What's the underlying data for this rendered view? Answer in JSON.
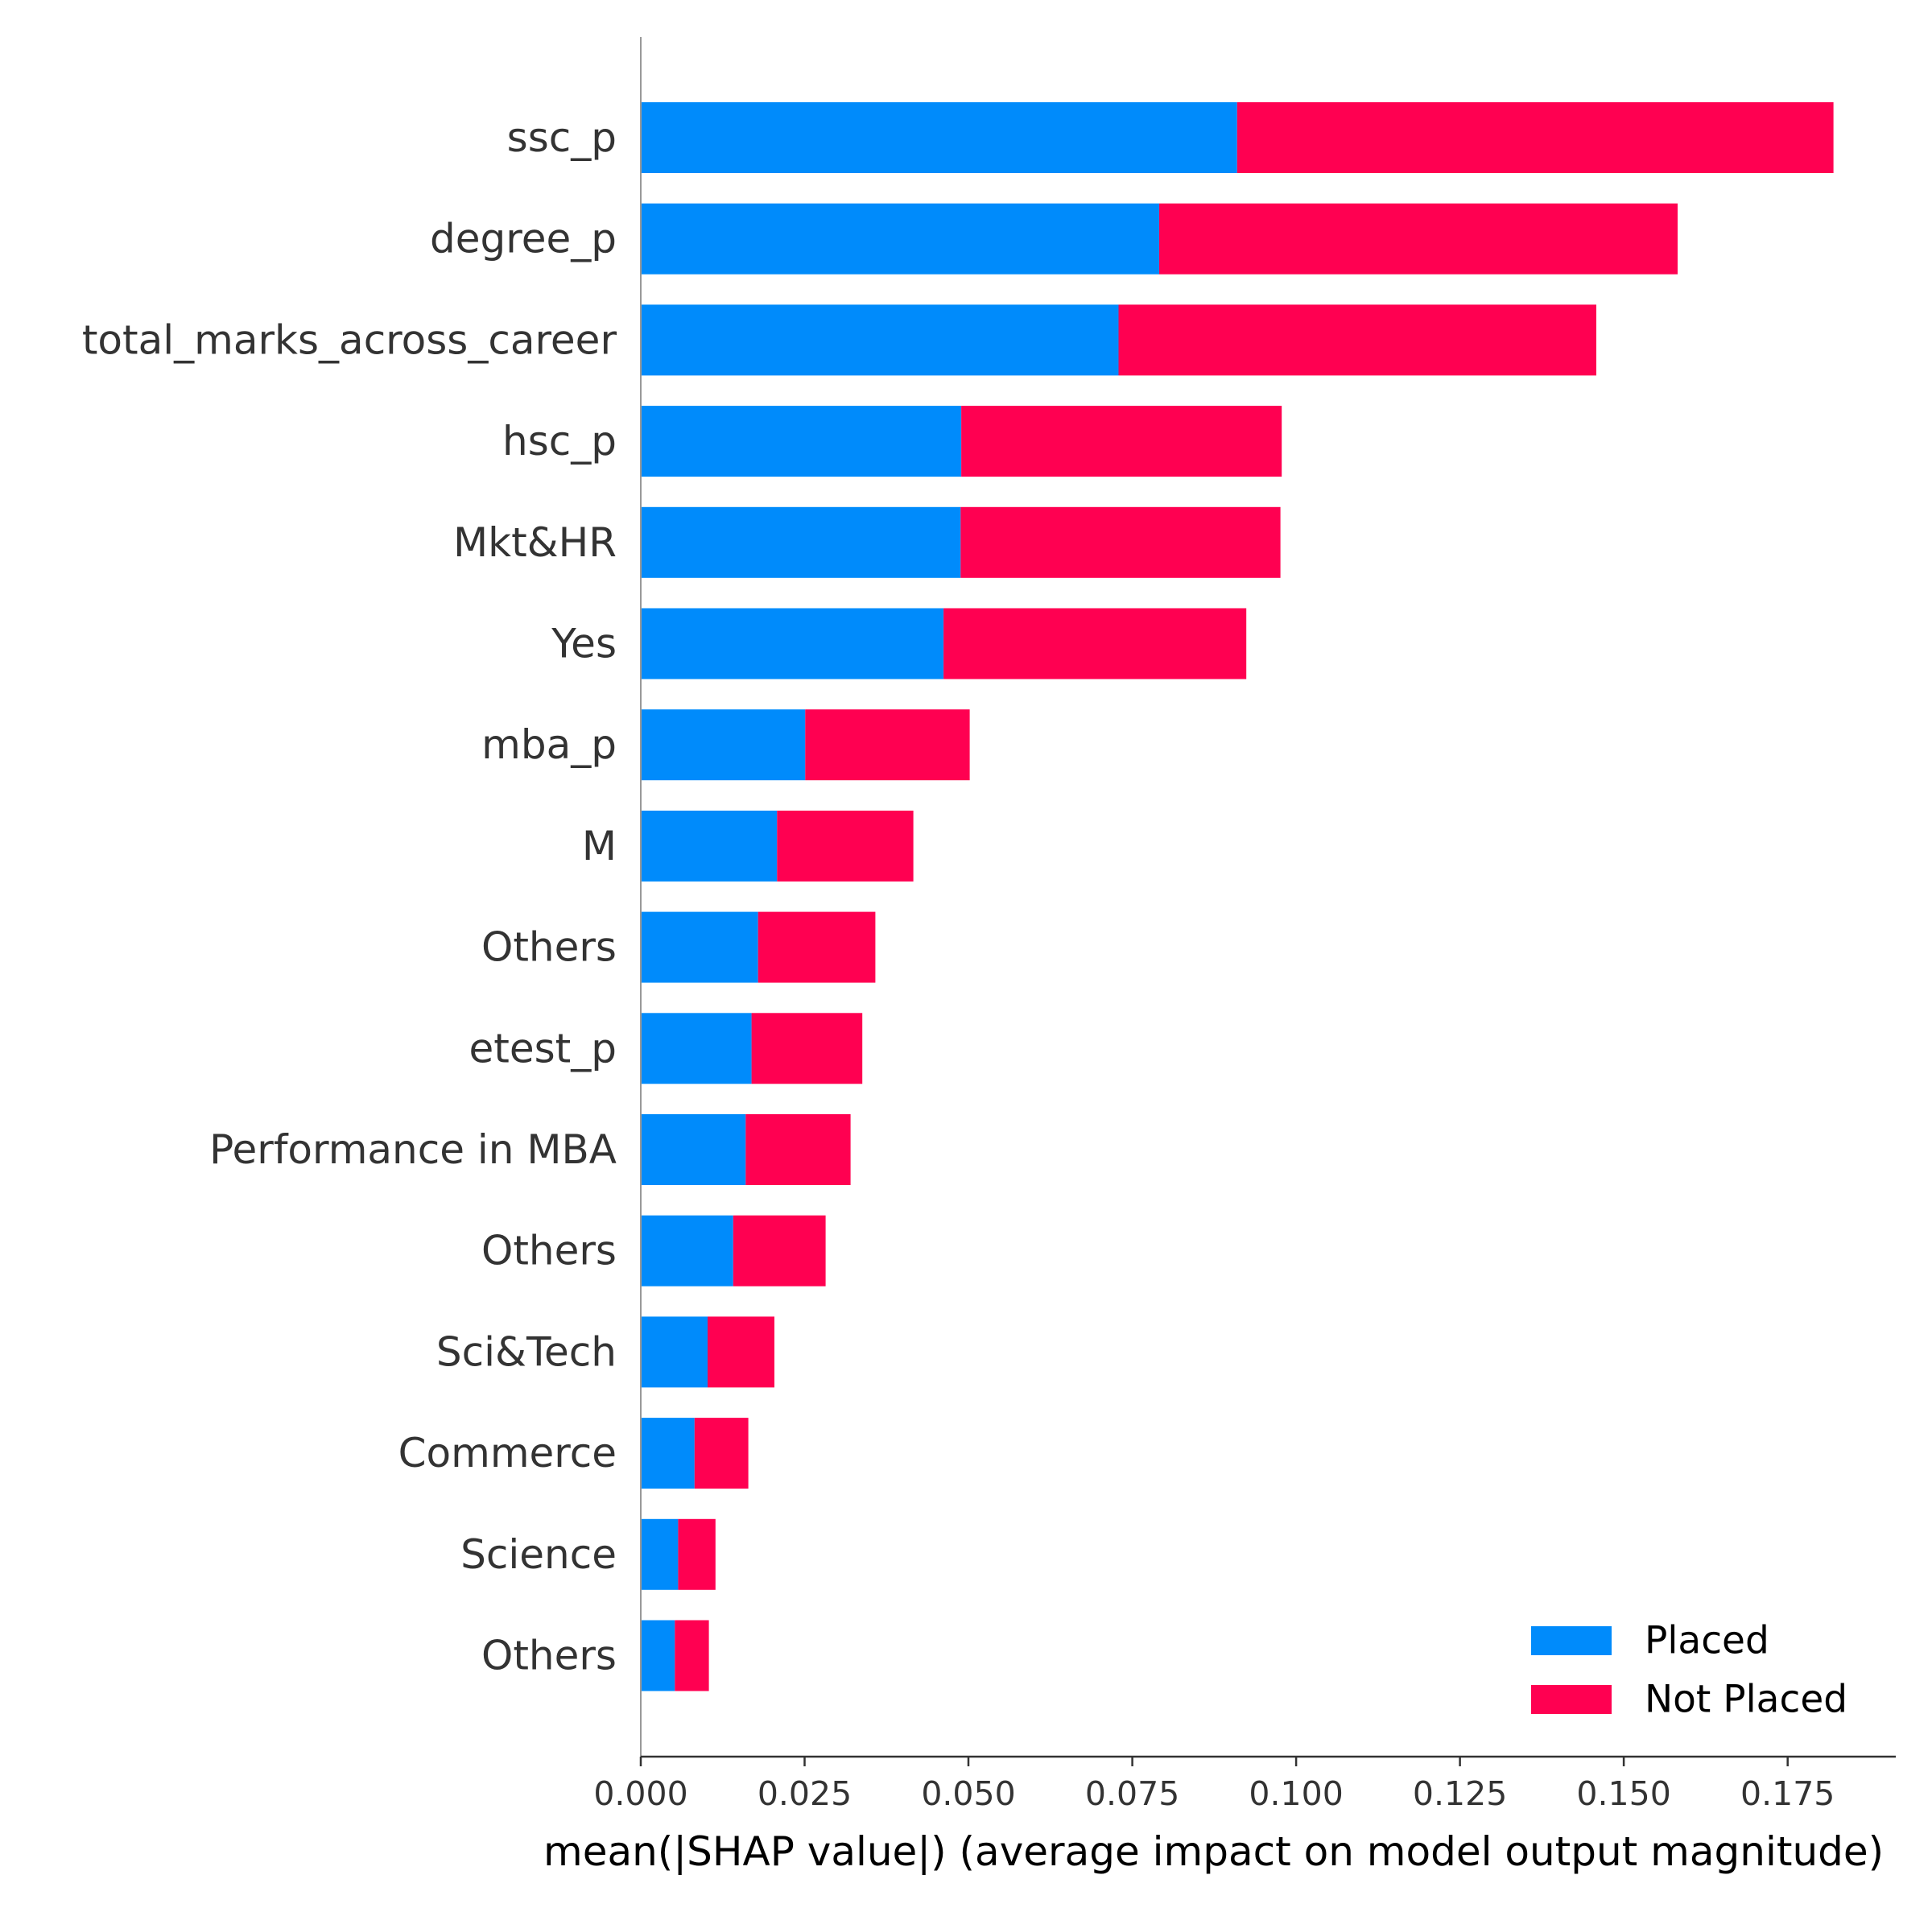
{
  "chart_data": {
    "type": "bar",
    "orientation": "horizontal",
    "stacked": true,
    "categories": [
      "ssc_p",
      "degree_p",
      "total_marks_across_career",
      "hsc_p",
      "Mkt&HR",
      "Yes",
      "mba_p",
      "M",
      "Others",
      "etest_p",
      "Performance in MBA",
      "Others",
      "Sci&Tech",
      "Commerce",
      "Science",
      "Others"
    ],
    "series": [
      {
        "name": "Placed",
        "color": "#008bfb",
        "values": [
          0.091,
          0.0791,
          0.0729,
          0.0489,
          0.0488,
          0.0462,
          0.0251,
          0.0208,
          0.0179,
          0.0169,
          0.016,
          0.0141,
          0.0102,
          0.0082,
          0.0057,
          0.0052
        ]
      },
      {
        "name": "Not Placed",
        "color": "#ff0051",
        "values": [
          0.091,
          0.0791,
          0.0729,
          0.0489,
          0.0488,
          0.0462,
          0.0251,
          0.0208,
          0.0179,
          0.0169,
          0.016,
          0.0141,
          0.0102,
          0.0082,
          0.0057,
          0.0052
        ]
      }
    ],
    "title": "",
    "xlabel": "mean(|SHAP value|) (average impact on model output magnitude)",
    "ylabel": "",
    "xlim": [
      0,
      0.1915
    ],
    "xticks": [
      0.0,
      0.025,
      0.05,
      0.075,
      0.1,
      0.125,
      0.15,
      0.175
    ],
    "xtick_labels": [
      "0.000",
      "0.025",
      "0.050",
      "0.075",
      "0.100",
      "0.125",
      "0.150",
      "0.175"
    ],
    "grid": false,
    "legend_position": "lower-right"
  }
}
